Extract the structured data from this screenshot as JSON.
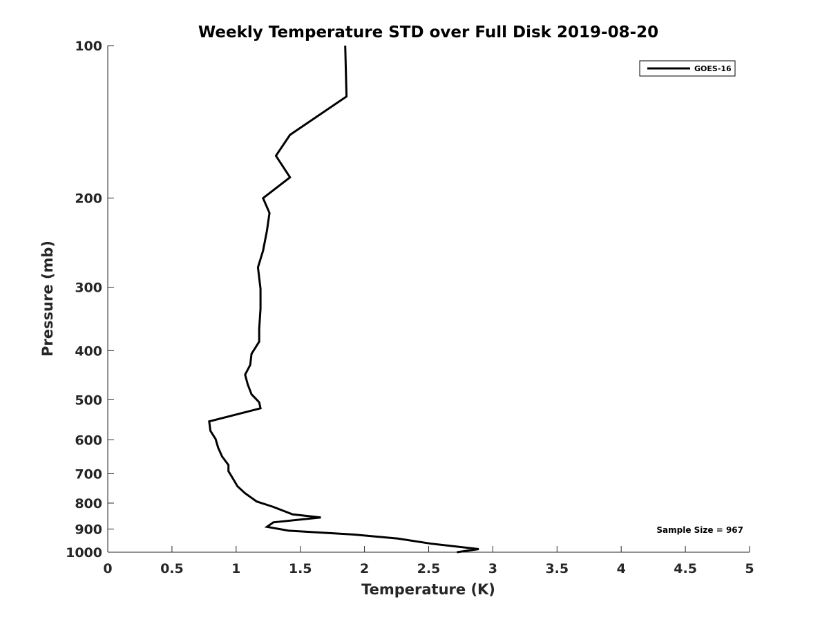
{
  "chart_data": {
    "type": "line",
    "title": "Weekly Temperature STD over Full Disk 2019-08-20",
    "xlabel": "Temperature (K)",
    "ylabel": "Pressure (mb)",
    "xlim": [
      0,
      5
    ],
    "ylim": [
      100,
      1000
    ],
    "y_scale": "log",
    "y_reversed": true,
    "grid": false,
    "x_ticks": [
      0,
      0.5,
      1,
      1.5,
      2,
      2.5,
      3,
      3.5,
      4,
      4.5,
      5
    ],
    "x_tick_labels": [
      "0",
      "0.5",
      "1",
      "1.5",
      "2",
      "2.5",
      "3",
      "3.5",
      "4",
      "4.5",
      "5"
    ],
    "y_ticks": [
      100,
      200,
      300,
      400,
      500,
      600,
      700,
      800,
      900,
      1000
    ],
    "y_tick_labels": [
      "100",
      "200",
      "300",
      "400",
      "500",
      "600",
      "700",
      "800",
      "900",
      "1000"
    ],
    "legend": {
      "placement": "top-right",
      "entries": [
        "GOES-16"
      ]
    },
    "annotation": "Sample Size = 967",
    "line_color": "#000000",
    "series": [
      {
        "name": "GOES-16",
        "x": [
          1.85,
          1.86,
          1.42,
          1.31,
          1.42,
          1.21,
          1.26,
          1.24,
          1.21,
          1.17,
          1.19,
          1.19,
          1.18,
          1.18,
          1.12,
          1.11,
          1.07,
          1.09,
          1.12,
          1.18,
          1.19,
          0.79,
          0.8,
          0.84,
          0.86,
          0.89,
          0.94,
          0.94,
          0.98,
          1.01,
          1.07,
          1.16,
          1.29,
          1.44,
          1.66,
          1.29,
          1.24,
          1.41,
          1.92,
          2.26,
          2.52,
          2.89,
          2.72
        ],
        "y": [
          100,
          126,
          150,
          165,
          182,
          200,
          214,
          232,
          254,
          274,
          302,
          331,
          362,
          384,
          406,
          427,
          446,
          466,
          488,
          506,
          520,
          552,
          576,
          598,
          622,
          647,
          673,
          692,
          719,
          741,
          765,
          794,
          814,
          842,
          854,
          873,
          891,
          907,
          923,
          940,
          962,
          986,
          1000
        ]
      }
    ]
  }
}
